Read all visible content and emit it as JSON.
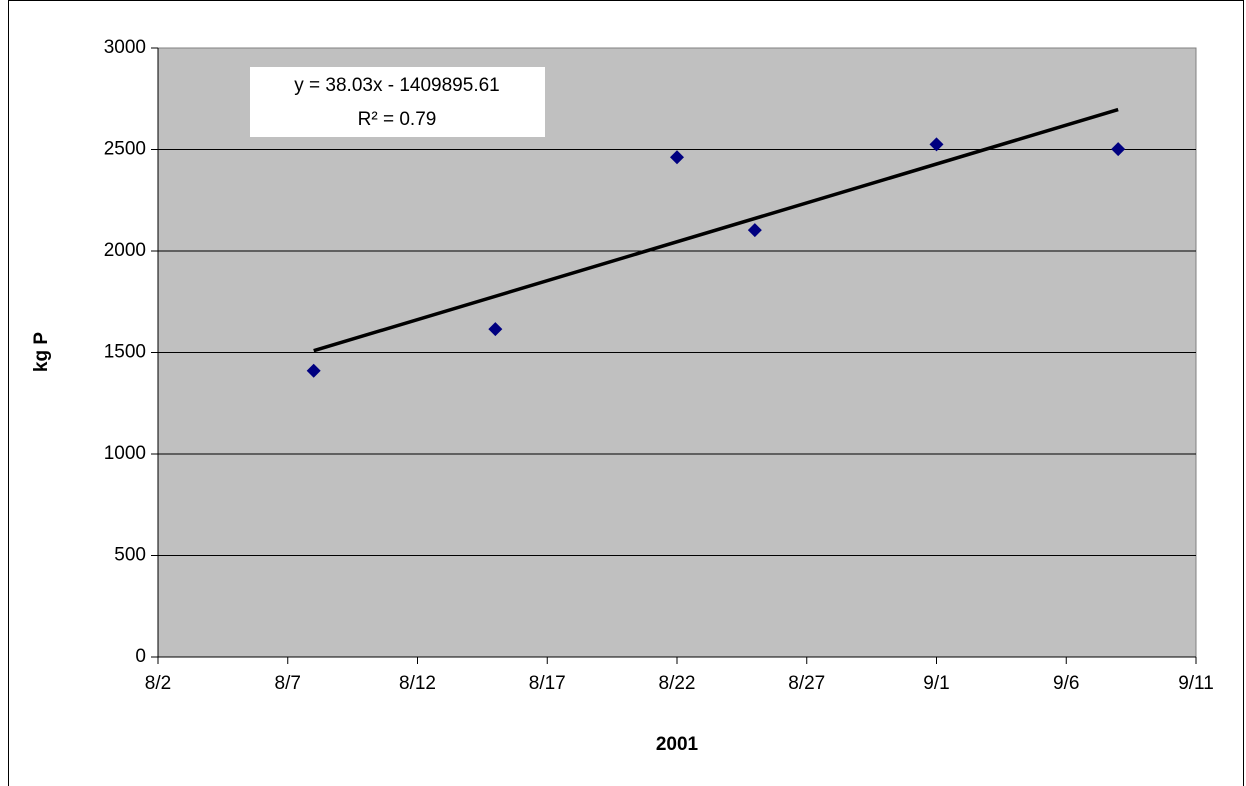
{
  "chart_data": {
    "type": "scatter",
    "x_label": "2001",
    "y_label": "kg P",
    "series": [
      {
        "color": "#000080",
        "x": [
          "8/8",
          "8/15",
          "8/22",
          "8/25",
          "9/1",
          "9/8"
        ],
        "values": [
          1410,
          1615,
          2462,
          2103,
          2525,
          2502
        ]
      }
    ],
    "xlim": [
      "8/2",
      "9/11"
    ],
    "xticks": [
      "8/2",
      "8/7",
      "8/12",
      "8/17",
      "8/22",
      "8/27",
      "9/1",
      "9/6",
      "9/11"
    ],
    "ylim": [
      0,
      3000
    ],
    "yticks": [
      0,
      500,
      1000,
      1500,
      2000,
      2500,
      3000
    ],
    "grid": true,
    "trendline": {
      "type": "linear",
      "color": "#000000",
      "equation": "y = 38.03x - 1409895.61",
      "r2": "R² = 0.79"
    }
  }
}
